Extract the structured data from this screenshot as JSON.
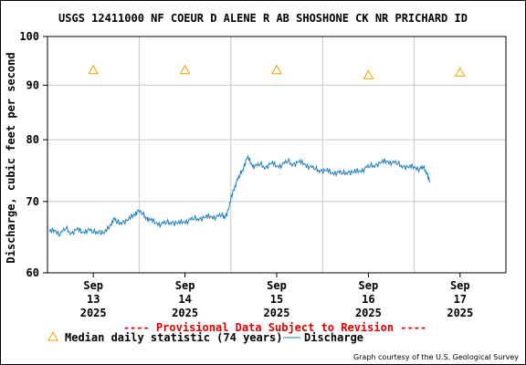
{
  "chart_data": {
    "type": "line",
    "title": "USGS 12411000 NF COEUR D ALENE R AB SHOSHONE CK NR PRICHARD ID",
    "ylabel": "Discharge, cubic feet per second",
    "yscale": "log",
    "ylim": [
      60,
      100
    ],
    "y_ticks": [
      60,
      70,
      80,
      90,
      100
    ],
    "y_tick_labels": [
      "60",
      "70",
      "80",
      "90",
      "100"
    ],
    "x_ticks": [
      {
        "day": 13,
        "label": [
          "Sep",
          "13",
          "2025"
        ]
      },
      {
        "day": 14,
        "label": [
          "Sep",
          "14",
          "2025"
        ]
      },
      {
        "day": 15,
        "label": [
          "Sep",
          "15",
          "2025"
        ]
      },
      {
        "day": 16,
        "label": [
          "Sep",
          "16",
          "2025"
        ]
      },
      {
        "day": 17,
        "label": [
          "Sep",
          "17",
          "2025"
        ]
      }
    ],
    "xlim_days": [
      12.5,
      17.5
    ],
    "grid": true,
    "provisional_notice": "---- Provisional Data Subject to Revision ----",
    "credit": "Graph courtesy of the U.S. Geological Survey",
    "series": [
      {
        "name": "Median daily statistic (74 years)",
        "kind": "markers",
        "marker": "triangle",
        "color": "#f0a000",
        "points": [
          {
            "day": 13,
            "value": 93
          },
          {
            "day": 14,
            "value": 93
          },
          {
            "day": 15,
            "value": 93
          },
          {
            "day": 16,
            "value": 92
          },
          {
            "day": 17,
            "value": 92.5
          }
        ]
      },
      {
        "name": "Discharge",
        "kind": "line",
        "color": "#1f7fbf",
        "points": [
          {
            "day": 12.52,
            "value": 65.5
          },
          {
            "day": 12.58,
            "value": 65.8
          },
          {
            "day": 12.64,
            "value": 65.3
          },
          {
            "day": 12.7,
            "value": 66.0
          },
          {
            "day": 12.76,
            "value": 65.4
          },
          {
            "day": 12.82,
            "value": 65.9
          },
          {
            "day": 12.88,
            "value": 65.5
          },
          {
            "day": 12.94,
            "value": 65.9
          },
          {
            "day": 13.0,
            "value": 65.4
          },
          {
            "day": 13.06,
            "value": 65.7
          },
          {
            "day": 13.12,
            "value": 65.3
          },
          {
            "day": 13.18,
            "value": 66.4
          },
          {
            "day": 13.22,
            "value": 67.5
          },
          {
            "day": 13.26,
            "value": 66.8
          },
          {
            "day": 13.32,
            "value": 67.0
          },
          {
            "day": 13.38,
            "value": 67.2
          },
          {
            "day": 13.44,
            "value": 68.0
          },
          {
            "day": 13.48,
            "value": 68.6
          },
          {
            "day": 13.54,
            "value": 68.1
          },
          {
            "day": 13.58,
            "value": 67.6
          },
          {
            "day": 13.62,
            "value": 67.2
          },
          {
            "day": 13.68,
            "value": 66.9
          },
          {
            "day": 13.74,
            "value": 66.7
          },
          {
            "day": 13.8,
            "value": 66.8
          },
          {
            "day": 13.86,
            "value": 67.0
          },
          {
            "day": 13.92,
            "value": 66.7
          },
          {
            "day": 13.98,
            "value": 67.0
          },
          {
            "day": 14.04,
            "value": 67.2
          },
          {
            "day": 14.1,
            "value": 67.4
          },
          {
            "day": 14.16,
            "value": 67.5
          },
          {
            "day": 14.22,
            "value": 67.6
          },
          {
            "day": 14.28,
            "value": 67.8
          },
          {
            "day": 14.34,
            "value": 67.7
          },
          {
            "day": 14.4,
            "value": 67.9
          },
          {
            "day": 14.44,
            "value": 67.8
          },
          {
            "day": 14.48,
            "value": 69.0
          },
          {
            "day": 14.52,
            "value": 71.5
          },
          {
            "day": 14.56,
            "value": 73.0
          },
          {
            "day": 14.6,
            "value": 74.0
          },
          {
            "day": 14.64,
            "value": 75.5
          },
          {
            "day": 14.68,
            "value": 77.0
          },
          {
            "day": 14.72,
            "value": 76.0
          },
          {
            "day": 14.76,
            "value": 75.5
          },
          {
            "day": 14.82,
            "value": 75.8
          },
          {
            "day": 14.88,
            "value": 75.4
          },
          {
            "day": 14.94,
            "value": 76.0
          },
          {
            "day": 15.0,
            "value": 75.6
          },
          {
            "day": 15.06,
            "value": 75.8
          },
          {
            "day": 15.12,
            "value": 76.3
          },
          {
            "day": 15.18,
            "value": 75.9
          },
          {
            "day": 15.24,
            "value": 76.2
          },
          {
            "day": 15.3,
            "value": 76.0
          },
          {
            "day": 15.36,
            "value": 75.5
          },
          {
            "day": 15.42,
            "value": 75.0
          },
          {
            "day": 15.48,
            "value": 74.9
          },
          {
            "day": 15.54,
            "value": 74.8
          },
          {
            "day": 15.6,
            "value": 74.5
          },
          {
            "day": 15.66,
            "value": 74.6
          },
          {
            "day": 15.72,
            "value": 74.3
          },
          {
            "day": 15.78,
            "value": 74.7
          },
          {
            "day": 15.84,
            "value": 74.5
          },
          {
            "day": 15.9,
            "value": 74.8
          },
          {
            "day": 15.96,
            "value": 75.2
          },
          {
            "day": 16.02,
            "value": 75.5
          },
          {
            "day": 16.08,
            "value": 75.8
          },
          {
            "day": 16.14,
            "value": 76.1
          },
          {
            "day": 16.2,
            "value": 76.4
          },
          {
            "day": 16.26,
            "value": 76.2
          },
          {
            "day": 16.32,
            "value": 75.9
          },
          {
            "day": 16.38,
            "value": 75.6
          },
          {
            "day": 16.44,
            "value": 75.3
          },
          {
            "day": 16.5,
            "value": 75.5
          },
          {
            "day": 16.56,
            "value": 75.1
          },
          {
            "day": 16.6,
            "value": 75.3
          },
          {
            "day": 16.64,
            "value": 74.5
          },
          {
            "day": 16.67,
            "value": 73.0
          }
        ]
      }
    ],
    "legend": [
      {
        "symbol": "triangle",
        "color": "#f0a000",
        "label": "Median daily statistic (74 years)"
      },
      {
        "symbol": "line",
        "color": "#1f7fbf",
        "label": "Discharge"
      }
    ]
  }
}
